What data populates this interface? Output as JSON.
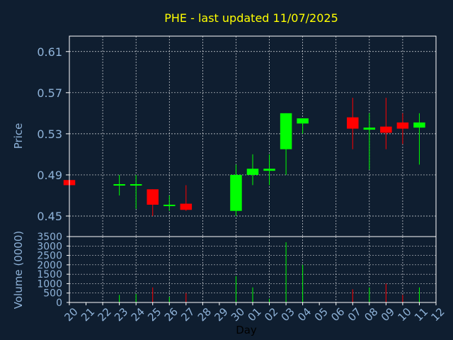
{
  "title": "PHE - last updated 11/07/2025",
  "colors": {
    "background": "#0f1e30",
    "up": "#00ff00",
    "down": "#ff0000",
    "title": "#ffff00",
    "axis_text": "#8fb3d9",
    "frame": "#ffffff"
  },
  "chart_data": [
    {
      "type": "candlestick",
      "ylabel": "Price",
      "ylim": [
        0.43,
        0.625
      ],
      "y_ticks": [
        "0.61",
        "0.57",
        "0.53",
        "0.49",
        "0.45"
      ],
      "grid": true,
      "categories": [
        "20",
        "21",
        "22",
        "23",
        "24",
        "25",
        "26",
        "27",
        "28",
        "29",
        "30",
        "01",
        "02",
        "03",
        "04",
        "05",
        "06",
        "07",
        "08",
        "09",
        "10",
        "11",
        "12"
      ],
      "ohlc": [
        {
          "day": "20",
          "open": 0.485,
          "high": 0.485,
          "low": 0.48,
          "close": 0.48
        },
        {
          "day": "23",
          "open": 0.48,
          "high": 0.49,
          "low": 0.47,
          "close": 0.481
        },
        {
          "day": "24",
          "open": 0.48,
          "high": 0.49,
          "low": 0.457,
          "close": 0.481
        },
        {
          "day": "25",
          "open": 0.476,
          "high": 0.476,
          "low": 0.45,
          "close": 0.461
        },
        {
          "day": "26",
          "open": 0.46,
          "high": 0.47,
          "low": 0.455,
          "close": 0.461
        },
        {
          "day": "27",
          "open": 0.462,
          "high": 0.48,
          "low": 0.455,
          "close": 0.456
        },
        {
          "day": "30",
          "open": 0.455,
          "high": 0.5,
          "low": 0.45,
          "close": 0.49
        },
        {
          "day": "01",
          "open": 0.49,
          "high": 0.51,
          "low": 0.48,
          "close": 0.496
        },
        {
          "day": "02",
          "open": 0.494,
          "high": 0.51,
          "low": 0.48,
          "close": 0.496
        },
        {
          "day": "03",
          "open": 0.515,
          "high": 0.55,
          "low": 0.49,
          "close": 0.55
        },
        {
          "day": "04",
          "open": 0.54,
          "high": 0.545,
          "low": 0.53,
          "close": 0.545
        },
        {
          "day": "07",
          "open": 0.546,
          "high": 0.565,
          "low": 0.515,
          "close": 0.535
        },
        {
          "day": "08",
          "open": 0.534,
          "high": 0.55,
          "low": 0.495,
          "close": 0.536
        },
        {
          "day": "09",
          "open": 0.537,
          "high": 0.565,
          "low": 0.515,
          "close": 0.531
        },
        {
          "day": "10",
          "open": 0.541,
          "high": 0.55,
          "low": 0.52,
          "close": 0.535
        },
        {
          "day": "11",
          "open": 0.536,
          "high": 0.55,
          "low": 0.5,
          "close": 0.541
        }
      ]
    },
    {
      "type": "bar",
      "ylabel": "Volume (0000)",
      "xlabel": "Day",
      "ylim": [
        0,
        3500
      ],
      "y_ticks": [
        "3500",
        "3000",
        "2500",
        "2000",
        "1500",
        "1000",
        "500",
        "0"
      ],
      "categories": [
        "20",
        "21",
        "22",
        "23",
        "24",
        "25",
        "26",
        "27",
        "28",
        "29",
        "30",
        "01",
        "02",
        "03",
        "04",
        "05",
        "06",
        "07",
        "08",
        "09",
        "10",
        "11",
        "12"
      ],
      "bars": [
        {
          "day": "20",
          "value": 50,
          "dir": "down"
        },
        {
          "day": "23",
          "value": 400,
          "dir": "up"
        },
        {
          "day": "24",
          "value": 450,
          "dir": "up"
        },
        {
          "day": "25",
          "value": 800,
          "dir": "down"
        },
        {
          "day": "26",
          "value": 300,
          "dir": "up"
        },
        {
          "day": "27",
          "value": 500,
          "dir": "down"
        },
        {
          "day": "30",
          "value": 1400,
          "dir": "up"
        },
        {
          "day": "01",
          "value": 800,
          "dir": "up"
        },
        {
          "day": "02",
          "value": 200,
          "dir": "up"
        },
        {
          "day": "03",
          "value": 3200,
          "dir": "up"
        },
        {
          "day": "04",
          "value": 2000,
          "dir": "up"
        },
        {
          "day": "07",
          "value": 700,
          "dir": "down"
        },
        {
          "day": "08",
          "value": 800,
          "dir": "up"
        },
        {
          "day": "09",
          "value": 1000,
          "dir": "down"
        },
        {
          "day": "10",
          "value": 400,
          "dir": "down"
        },
        {
          "day": "11",
          "value": 800,
          "dir": "up"
        }
      ]
    }
  ]
}
